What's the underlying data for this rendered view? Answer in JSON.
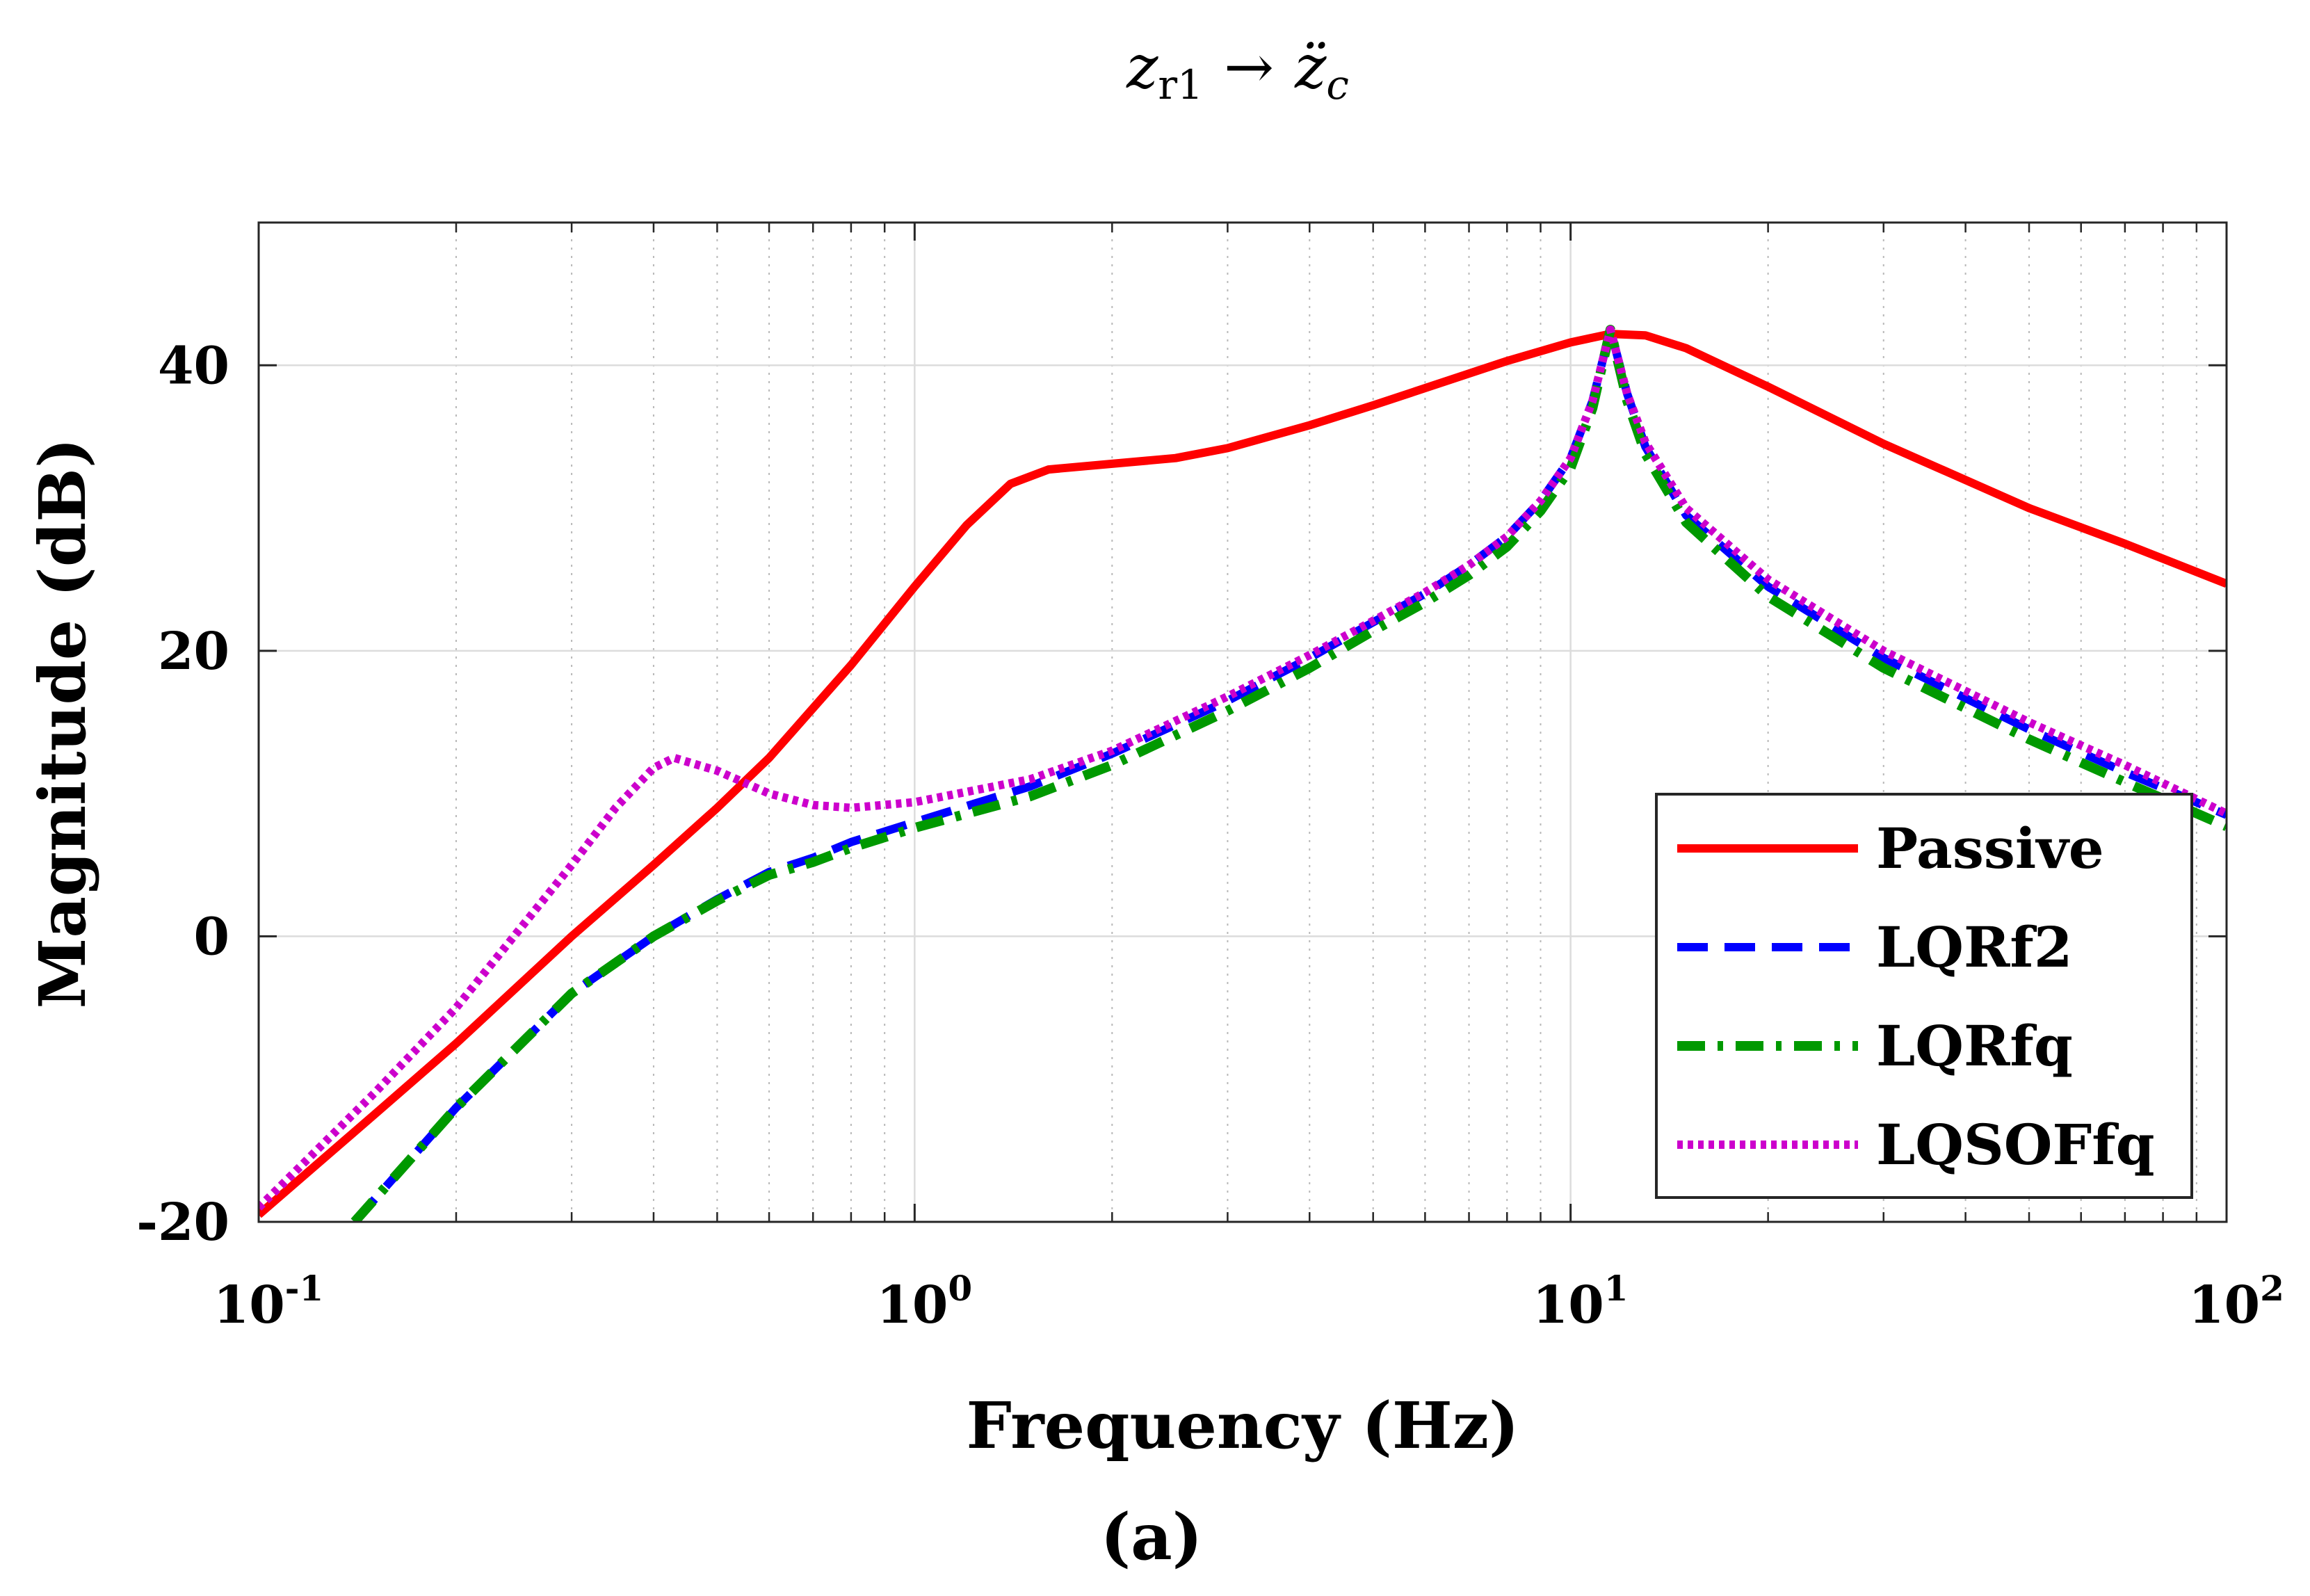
{
  "chart_data": {
    "type": "line",
    "title": "z_r1 → z̈_c",
    "title_parts": {
      "base": "z",
      "sub": "r1",
      "arrow": "→",
      "target": "z̈",
      "target_sub": "c"
    },
    "xlabel": "Frequency (Hz)",
    "ylabel": "Magnitude (dB)",
    "caption": "(a)",
    "x_scale": "log",
    "xlim": [
      0.1,
      100
    ],
    "ylim": [
      -20,
      50
    ],
    "x_ticks": [
      {
        "value": 0.1,
        "base": "10",
        "exp": "-1"
      },
      {
        "value": 1,
        "base": "10",
        "exp": "0"
      },
      {
        "value": 10,
        "base": "10",
        "exp": "1"
      },
      {
        "value": 100,
        "base": "10",
        "exp": "2"
      }
    ],
    "y_ticks": [
      {
        "value": -20,
        "label": "-20"
      },
      {
        "value": 0,
        "label": "0"
      },
      {
        "value": 20,
        "label": "20"
      },
      {
        "value": 40,
        "label": "40"
      }
    ],
    "grid": true,
    "legend_position": "bottom-right",
    "series": [
      {
        "name": "Passive",
        "color": "#ff0000",
        "style": "solid",
        "x": [
          0.1,
          0.15,
          0.2,
          0.3,
          0.4,
          0.5,
          0.6,
          0.8,
          1.0,
          1.2,
          1.4,
          1.6,
          2.0,
          2.5,
          3.0,
          4.0,
          5.0,
          6.0,
          8.0,
          10.0,
          11.5,
          13.0,
          15.0,
          20.0,
          30.0,
          50.0,
          70.0,
          100.0
        ],
        "y": [
          -19.5,
          -12.5,
          -7.5,
          0,
          5,
          9,
          12.5,
          19,
          24.5,
          28.8,
          31.7,
          32.7,
          33.1,
          33.5,
          34.2,
          35.8,
          37.2,
          38.4,
          40.3,
          41.6,
          42.2,
          42.1,
          41.2,
          38.5,
          34.5,
          30.0,
          27.5,
          24.7
        ]
      },
      {
        "name": "LQRf2",
        "color": "#0000ff",
        "style": "dashed",
        "x": [
          0.14,
          0.2,
          0.3,
          0.4,
          0.5,
          0.6,
          0.7,
          0.8,
          1.0,
          1.5,
          2.0,
          3.0,
          4.0,
          5.0,
          6.0,
          7.0,
          8.0,
          9.0,
          10.0,
          10.8,
          11.5,
          12.2,
          13.0,
          15.0,
          20.0,
          30.0,
          50.0,
          70.0,
          100.0
        ],
        "y": [
          -20,
          -12,
          -4,
          0,
          2.6,
          4.5,
          5.5,
          6.6,
          8,
          10.5,
          12.8,
          16.5,
          19.5,
          22,
          24,
          26,
          28,
          30.5,
          33.5,
          37.5,
          42.5,
          38,
          34.3,
          29.5,
          24.5,
          19.5,
          14.5,
          11.5,
          8.5
        ]
      },
      {
        "name": "LQRfq",
        "color": "#009900",
        "style": "dashdot",
        "x": [
          0.14,
          0.2,
          0.3,
          0.4,
          0.5,
          0.6,
          0.7,
          0.8,
          1.0,
          1.5,
          2.0,
          3.0,
          4.0,
          5.0,
          6.0,
          7.0,
          8.0,
          9.0,
          10.0,
          10.8,
          11.5,
          12.2,
          13.0,
          15.0,
          20.0,
          30.0,
          50.0,
          70.0,
          100.0
        ],
        "y": [
          -20,
          -12,
          -4,
          0,
          2.5,
          4.3,
          5.2,
          6.2,
          7.6,
          9.8,
          12,
          15.8,
          18.8,
          21.4,
          23.4,
          25.3,
          27.3,
          29.8,
          32.8,
          37,
          42.5,
          37.5,
          33.8,
          29,
          23.8,
          18.8,
          13.8,
          10.8,
          7.7
        ]
      },
      {
        "name": "LQSOFfq",
        "color": "#cc00cc",
        "style": "dotted",
        "x": [
          0.1,
          0.15,
          0.2,
          0.3,
          0.35,
          0.4,
          0.43,
          0.5,
          0.6,
          0.7,
          0.8,
          1.0,
          1.5,
          2.0,
          3.0,
          4.0,
          5.0,
          6.0,
          7.0,
          8.0,
          9.0,
          10.0,
          10.8,
          11.5,
          12.2,
          13.0,
          15.0,
          20.0,
          30.0,
          50.0,
          70.0,
          100.0
        ],
        "y": [
          -19,
          -11,
          -5,
          5,
          9,
          11.8,
          12.5,
          11.6,
          10,
          9.2,
          9,
          9.4,
          11,
          13,
          16.8,
          19.7,
          22.1,
          24.1,
          26,
          28,
          30.5,
          33.5,
          37.5,
          42.5,
          38,
          34.6,
          30,
          25,
          20,
          15,
          12,
          8.6
        ]
      }
    ]
  }
}
